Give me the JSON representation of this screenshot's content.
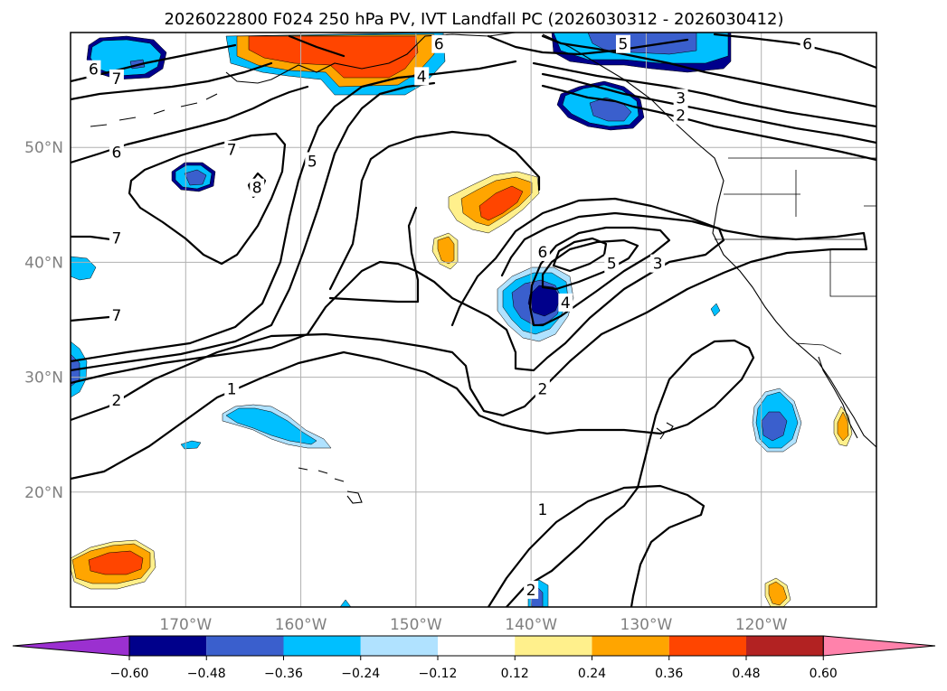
{
  "chart_data": {
    "type": "contour_map",
    "title": "2026022800 F024 250 hPa PV, IVT Landfall PC (2026030312 - 2026030412)",
    "projection": "lat-lon",
    "lon_range": [
      -180,
      -110
    ],
    "lat_range": [
      10,
      60
    ],
    "lon_ticks": [
      {
        "value": -170,
        "label": "170°W"
      },
      {
        "value": -160,
        "label": "160°W"
      },
      {
        "value": -150,
        "label": "150°W"
      },
      {
        "value": -140,
        "label": "140°W"
      },
      {
        "value": -130,
        "label": "130°W"
      },
      {
        "value": -120,
        "label": "120°W"
      }
    ],
    "lat_ticks": [
      {
        "value": 20,
        "label": "20°N"
      },
      {
        "value": 30,
        "label": "30°N"
      },
      {
        "value": 40,
        "label": "40°N"
      },
      {
        "value": 50,
        "label": "50°N"
      }
    ],
    "grid": true,
    "pv_contour_levels": [
      1,
      2,
      3,
      4,
      5,
      6,
      7,
      8
    ],
    "contour_labels": [
      {
        "text": "6",
        "lon": -148.0,
        "lat": 59.0
      },
      {
        "text": "5",
        "lon": -132.0,
        "lat": 59.0
      },
      {
        "text": "6",
        "lon": -116.0,
        "lat": 59.0
      },
      {
        "text": "4",
        "lon": -149.5,
        "lat": 56.2
      },
      {
        "text": "3",
        "lon": -127.0,
        "lat": 54.3
      },
      {
        "text": "2",
        "lon": -127.0,
        "lat": 52.8
      },
      {
        "text": "6",
        "lon": -178.0,
        "lat": 56.8
      },
      {
        "text": "7",
        "lon": -176.0,
        "lat": 56.0
      },
      {
        "text": "6",
        "lon": -176.0,
        "lat": 49.6
      },
      {
        "text": "7",
        "lon": -166.0,
        "lat": 49.8
      },
      {
        "text": "8",
        "lon": -163.8,
        "lat": 46.5
      },
      {
        "text": "5",
        "lon": -159.0,
        "lat": 48.8
      },
      {
        "text": "7",
        "lon": -176.0,
        "lat": 42.1
      },
      {
        "text": "7",
        "lon": -176.0,
        "lat": 35.4
      },
      {
        "text": "6",
        "lon": -139.0,
        "lat": 40.9
      },
      {
        "text": "5",
        "lon": -133.0,
        "lat": 39.9
      },
      {
        "text": "3",
        "lon": -129.0,
        "lat": 39.9
      },
      {
        "text": "4",
        "lon": -137.0,
        "lat": 36.5
      },
      {
        "text": "1",
        "lon": -166.0,
        "lat": 29.0
      },
      {
        "text": "2",
        "lon": -176.0,
        "lat": 28.0
      },
      {
        "text": "2",
        "lon": -139.0,
        "lat": 29.0
      },
      {
        "text": "1",
        "lon": -139.0,
        "lat": 18.5
      },
      {
        "text": "2",
        "lon": -140.0,
        "lat": 11.5
      }
    ],
    "colorbar": {
      "ticks": [
        "−0.60",
        "−0.48",
        "−0.36",
        "−0.24",
        "−0.12",
        "0.12",
        "0.24",
        "0.36",
        "0.48",
        "0.60"
      ],
      "colors": [
        "#9b30d0",
        "#00008b",
        "#3a5fcd",
        "#00bfff",
        "#b0e2ff",
        "#ffffff",
        "#fff08c",
        "#ffa500",
        "#ff4500",
        "#b22222",
        "#ff82ab"
      ],
      "extend": "both"
    }
  }
}
